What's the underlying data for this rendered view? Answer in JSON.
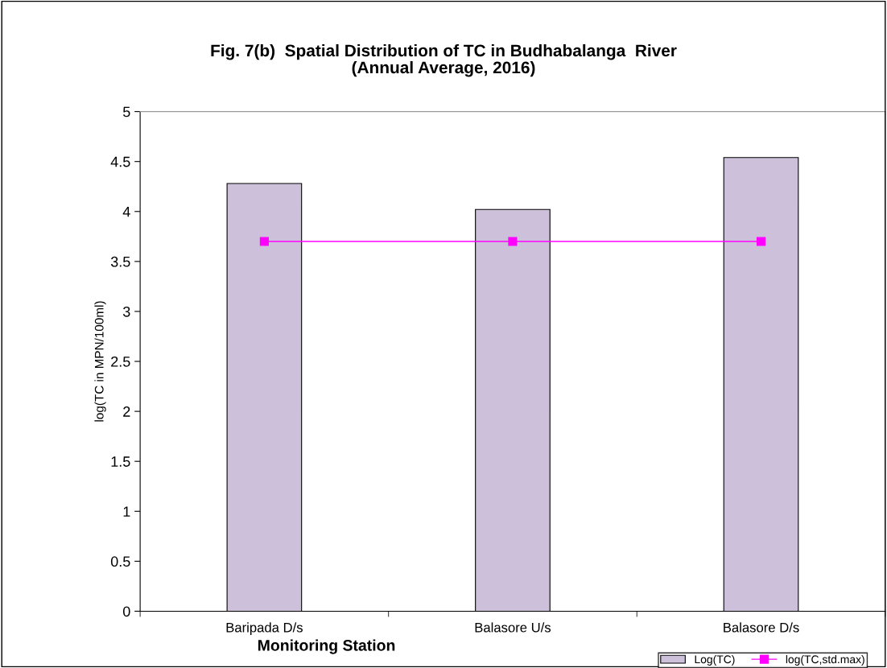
{
  "chart_data": {
    "type": "bar",
    "title": "Fig. 7(b)  Spatial Distribution of TC in Budhabalanga  River\n(Annual Average, 2016)",
    "xlabel": "Monitoring Station",
    "ylabel": "log(TC in MPN/100ml)",
    "categories": [
      "Baripada D/s",
      "Balasore U/s",
      "Balasore D/s"
    ],
    "series": [
      {
        "name": "Log(TC)",
        "color": "#ccc0da",
        "values": [
          4.28,
          4.02,
          4.54
        ]
      },
      {
        "name": "log(TC,std.max)",
        "type": "line",
        "color": "#ff00ff",
        "values": [
          3.7,
          3.7,
          3.7
        ],
        "marker": "square"
      }
    ],
    "ylim": [
      0,
      5
    ],
    "yticks": [
      0,
      0.5,
      1,
      1.5,
      2,
      2.5,
      3,
      3.5,
      4,
      4.5,
      5
    ],
    "grid": false,
    "legend": "bottom right"
  }
}
